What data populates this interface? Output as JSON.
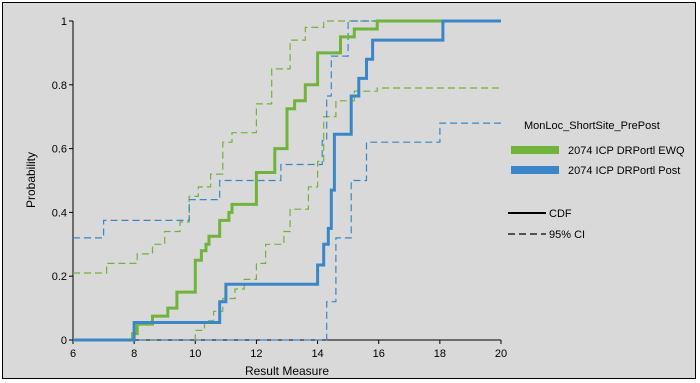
{
  "chart_data": {
    "type": "line",
    "title": "",
    "xlabel": "Result Measure",
    "ylabel": "Probability",
    "xlim": [
      6,
      20
    ],
    "ylim": [
      0,
      1
    ],
    "x_ticks": [
      "6",
      "8",
      "10",
      "12",
      "14",
      "16",
      "18",
      "20"
    ],
    "y_ticks": [
      "0",
      "0.2",
      "0.4",
      "0.6",
      "0.8",
      "1"
    ],
    "x_tick_values": [
      6,
      8,
      10,
      12,
      14,
      16,
      18,
      20
    ],
    "y_tick_values": [
      0,
      0.2,
      0.4,
      0.6,
      0.8,
      1
    ],
    "grid": false,
    "legend_position": "right",
    "legend_title": "MonLoc_ShortSite_PrePost",
    "series": [
      {
        "name": "2074 ICP DRPortl EWQ",
        "color": "#70b43c",
        "kind": "step",
        "cdf": [
          [
            6,
            0
          ],
          [
            7.95,
            0
          ],
          [
            7.95,
            0.02
          ],
          [
            8.1,
            0.02
          ],
          [
            8.1,
            0.05
          ],
          [
            8.6,
            0.05
          ],
          [
            8.6,
            0.075
          ],
          [
            9.1,
            0.075
          ],
          [
            9.1,
            0.1
          ],
          [
            9.4,
            0.1
          ],
          [
            9.4,
            0.15
          ],
          [
            10.0,
            0.15
          ],
          [
            10.0,
            0.25
          ],
          [
            10.2,
            0.25
          ],
          [
            10.2,
            0.28
          ],
          [
            10.35,
            0.28
          ],
          [
            10.35,
            0.3
          ],
          [
            10.45,
            0.3
          ],
          [
            10.45,
            0.325
          ],
          [
            10.8,
            0.325
          ],
          [
            10.8,
            0.375
          ],
          [
            11.1,
            0.375
          ],
          [
            11.1,
            0.4
          ],
          [
            11.2,
            0.4
          ],
          [
            11.2,
            0.425
          ],
          [
            12.0,
            0.425
          ],
          [
            12.0,
            0.525
          ],
          [
            12.6,
            0.525
          ],
          [
            12.6,
            0.6
          ],
          [
            13.0,
            0.6
          ],
          [
            13.0,
            0.725
          ],
          [
            13.25,
            0.725
          ],
          [
            13.25,
            0.75
          ],
          [
            13.6,
            0.75
          ],
          [
            13.6,
            0.8
          ],
          [
            14.0,
            0.8
          ],
          [
            14.0,
            0.9
          ],
          [
            14.75,
            0.9
          ],
          [
            14.75,
            0.95
          ],
          [
            15.2,
            0.95
          ],
          [
            15.2,
            0.975
          ],
          [
            15.95,
            0.975
          ],
          [
            15.95,
            1.0
          ],
          [
            20,
            1.0
          ]
        ],
        "ci_upper": [
          [
            6,
            0.21
          ],
          [
            7.1,
            0.21
          ],
          [
            7.1,
            0.24
          ],
          [
            8.1,
            0.24
          ],
          [
            8.1,
            0.27
          ],
          [
            8.6,
            0.27
          ],
          [
            8.6,
            0.3
          ],
          [
            9.0,
            0.3
          ],
          [
            9.0,
            0.34
          ],
          [
            9.5,
            0.34
          ],
          [
            9.5,
            0.37
          ],
          [
            9.8,
            0.37
          ],
          [
            9.8,
            0.45
          ],
          [
            10.1,
            0.45
          ],
          [
            10.1,
            0.48
          ],
          [
            10.5,
            0.48
          ],
          [
            10.5,
            0.52
          ],
          [
            10.9,
            0.52
          ],
          [
            10.9,
            0.62
          ],
          [
            11.2,
            0.62
          ],
          [
            11.2,
            0.65
          ],
          [
            12.0,
            0.65
          ],
          [
            12.0,
            0.74
          ],
          [
            12.5,
            0.74
          ],
          [
            12.5,
            0.85
          ],
          [
            13.1,
            0.85
          ],
          [
            13.1,
            0.94
          ],
          [
            13.6,
            0.94
          ],
          [
            13.6,
            0.98
          ],
          [
            14.2,
            0.98
          ],
          [
            14.2,
            1.0
          ],
          [
            20,
            1.0
          ]
        ],
        "ci_lower": [
          [
            6,
            0
          ],
          [
            10.0,
            0
          ],
          [
            10.0,
            0.03
          ],
          [
            10.3,
            0.03
          ],
          [
            10.3,
            0.06
          ],
          [
            10.6,
            0.06
          ],
          [
            10.6,
            0.09
          ],
          [
            10.9,
            0.09
          ],
          [
            10.9,
            0.13
          ],
          [
            11.3,
            0.13
          ],
          [
            11.3,
            0.16
          ],
          [
            11.6,
            0.16
          ],
          [
            11.6,
            0.19
          ],
          [
            12.0,
            0.19
          ],
          [
            12.0,
            0.24
          ],
          [
            12.3,
            0.24
          ],
          [
            12.3,
            0.3
          ],
          [
            12.9,
            0.3
          ],
          [
            12.9,
            0.34
          ],
          [
            13.1,
            0.34
          ],
          [
            13.1,
            0.41
          ],
          [
            13.7,
            0.41
          ],
          [
            13.7,
            0.48
          ],
          [
            14.0,
            0.48
          ],
          [
            14.0,
            0.56
          ],
          [
            14.2,
            0.56
          ],
          [
            14.2,
            0.7
          ],
          [
            14.6,
            0.7
          ],
          [
            14.6,
            0.75
          ],
          [
            15.2,
            0.75
          ],
          [
            15.2,
            0.78
          ],
          [
            15.95,
            0.78
          ],
          [
            15.95,
            0.79
          ],
          [
            20,
            0.79
          ]
        ]
      },
      {
        "name": "2074 ICP DRPortl Post",
        "color": "#3a86c8",
        "kind": "step",
        "cdf": [
          [
            6,
            0
          ],
          [
            8.0,
            0
          ],
          [
            8.0,
            0.055
          ],
          [
            10.8,
            0.055
          ],
          [
            10.8,
            0.12
          ],
          [
            11.0,
            0.12
          ],
          [
            11.0,
            0.175
          ],
          [
            14.0,
            0.175
          ],
          [
            14.0,
            0.235
          ],
          [
            14.2,
            0.235
          ],
          [
            14.2,
            0.3
          ],
          [
            14.35,
            0.3
          ],
          [
            14.35,
            0.35
          ],
          [
            14.45,
            0.35
          ],
          [
            14.45,
            0.47
          ],
          [
            14.55,
            0.47
          ],
          [
            14.55,
            0.645
          ],
          [
            15.1,
            0.645
          ],
          [
            15.1,
            0.765
          ],
          [
            15.35,
            0.765
          ],
          [
            15.35,
            0.82
          ],
          [
            15.6,
            0.82
          ],
          [
            15.6,
            0.88
          ],
          [
            15.8,
            0.88
          ],
          [
            15.8,
            0.94
          ],
          [
            18.1,
            0.94
          ],
          [
            18.1,
            1.0
          ],
          [
            20,
            1.0
          ]
        ],
        "ci_upper": [
          [
            6,
            0.32
          ],
          [
            7.0,
            0.32
          ],
          [
            7.0,
            0.375
          ],
          [
            9.8,
            0.375
          ],
          [
            9.8,
            0.44
          ],
          [
            10.8,
            0.44
          ],
          [
            10.8,
            0.5
          ],
          [
            12.8,
            0.5
          ],
          [
            12.8,
            0.55
          ],
          [
            14.15,
            0.55
          ],
          [
            14.15,
            0.625
          ],
          [
            14.3,
            0.625
          ],
          [
            14.3,
            0.765
          ],
          [
            14.45,
            0.765
          ],
          [
            14.45,
            0.89
          ],
          [
            15.0,
            0.89
          ],
          [
            15.0,
            1.0
          ],
          [
            20,
            1.0
          ]
        ],
        "ci_lower": [
          [
            6,
            0
          ],
          [
            14.3,
            0
          ],
          [
            14.3,
            0.12
          ],
          [
            14.6,
            0.12
          ],
          [
            14.6,
            0.32
          ],
          [
            15.1,
            0.32
          ],
          [
            15.1,
            0.5
          ],
          [
            15.6,
            0.5
          ],
          [
            15.6,
            0.62
          ],
          [
            18.0,
            0.62
          ],
          [
            18.0,
            0.68
          ],
          [
            20,
            0.68
          ]
        ]
      }
    ],
    "line_legend": {
      "solid": "CDF",
      "dashed": "95% CI"
    }
  }
}
